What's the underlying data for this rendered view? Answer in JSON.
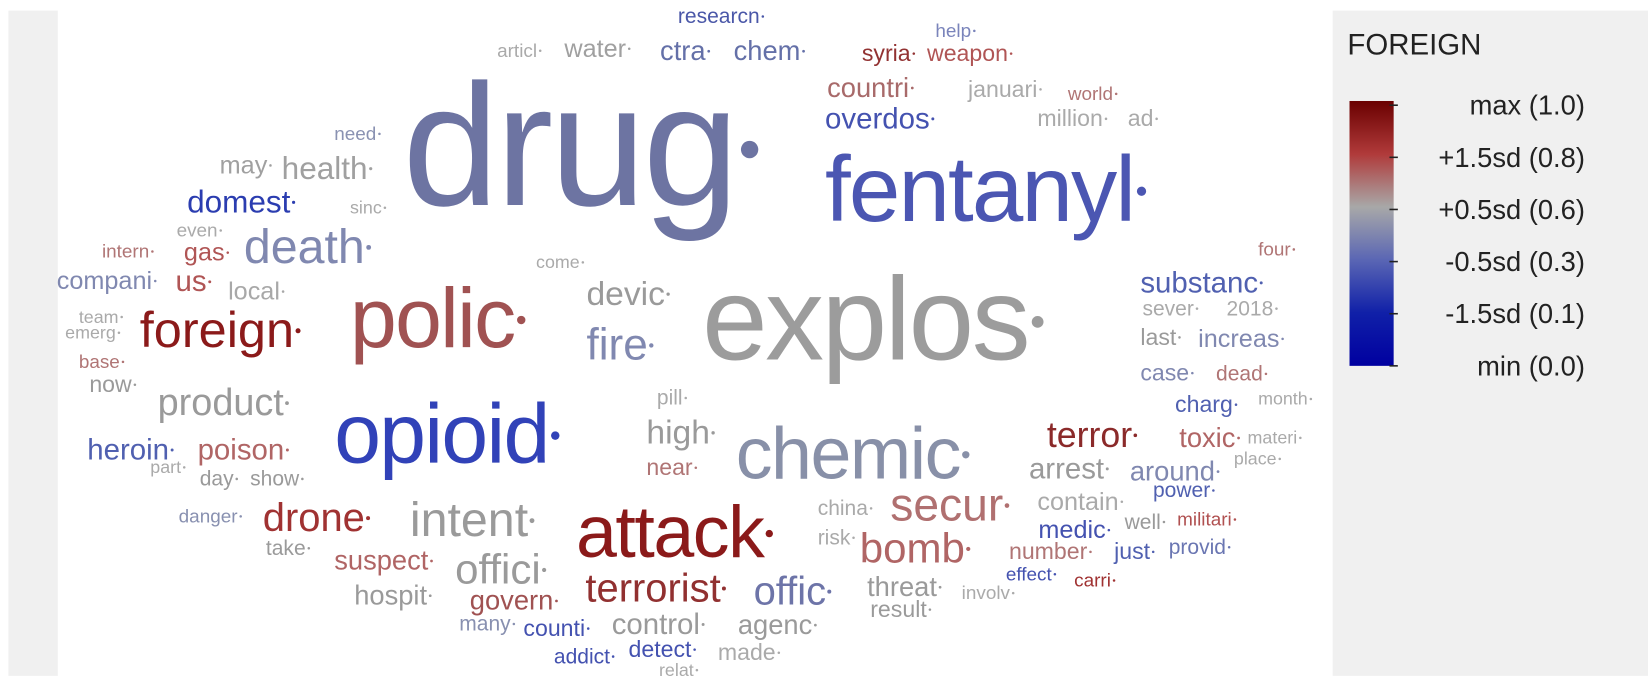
{
  "chart_data": {
    "type": "wordcloud",
    "words": [
      {
        "text": "researcn",
        "color": "#4a57a8"
      },
      {
        "text": "help",
        "color": "#7a84bb"
      },
      {
        "text": "articl",
        "color": "#aaaaaa"
      },
      {
        "text": "water",
        "color": "#a0a0a0"
      },
      {
        "text": "ctra",
        "color": "#6470a8"
      },
      {
        "text": "chem",
        "color": "#6470a8"
      },
      {
        "text": "syria",
        "color": "#923232"
      },
      {
        "text": "weapon",
        "color": "#b05555"
      },
      {
        "text": "countri",
        "color": "#a86a6a"
      },
      {
        "text": "januari",
        "color": "#aaaaaa"
      },
      {
        "text": "world",
        "color": "#b07575"
      },
      {
        "text": "overdos",
        "color": "#4452b0"
      },
      {
        "text": "million",
        "color": "#aaaaaa"
      },
      {
        "text": "ad",
        "color": "#aaaaaa"
      },
      {
        "text": "need",
        "color": "#8a92b2"
      },
      {
        "text": "drug",
        "color": "#6d74a2"
      },
      {
        "text": "fentanyl",
        "color": "#4b56b2"
      },
      {
        "text": "may",
        "color": "#a0a0a0"
      },
      {
        "text": "health",
        "color": "#a0a0a0"
      },
      {
        "text": "domest",
        "color": "#2b3db0"
      },
      {
        "text": "sinc",
        "color": "#aaaaaa"
      },
      {
        "text": "even",
        "color": "#aaaaaa"
      },
      {
        "text": "intern",
        "color": "#b07575"
      },
      {
        "text": "gas",
        "color": "#b05555"
      },
      {
        "text": "death",
        "color": "#8088b0"
      },
      {
        "text": "come",
        "color": "#aaaaaa"
      },
      {
        "text": "four",
        "color": "#b07575"
      },
      {
        "text": "compani",
        "color": "#8088b0"
      },
      {
        "text": "us",
        "color": "#b05555"
      },
      {
        "text": "local",
        "color": "#a8a8a8"
      },
      {
        "text": "polic",
        "color": "#a05252"
      },
      {
        "text": "devic",
        "color": "#9a9a9a"
      },
      {
        "text": "explos",
        "color": "#9c9c9c"
      },
      {
        "text": "substanc",
        "color": "#5060b0"
      },
      {
        "text": "team",
        "color": "#aaaaaa"
      },
      {
        "text": "foreign",
        "color": "#8b1a1a"
      },
      {
        "text": "sever",
        "color": "#aaaaaa"
      },
      {
        "text": "2018",
        "color": "#aaaaaa"
      },
      {
        "text": "emerg",
        "color": "#aaaaaa"
      },
      {
        "text": "fire",
        "color": "#8088b0"
      },
      {
        "text": "last",
        "color": "#9a9a9a"
      },
      {
        "text": "increas",
        "color": "#8088b0"
      },
      {
        "text": "base",
        "color": "#b07575"
      },
      {
        "text": "case",
        "color": "#8088b0"
      },
      {
        "text": "dead",
        "color": "#b07575"
      },
      {
        "text": "now",
        "color": "#9a9a9a"
      },
      {
        "text": "product",
        "color": "#9a9a9a"
      },
      {
        "text": "pill",
        "color": "#aaaaaa"
      },
      {
        "text": "charg",
        "color": "#5060b0"
      },
      {
        "text": "month",
        "color": "#aaaaaa"
      },
      {
        "text": "opioid",
        "color": "#3142b8"
      },
      {
        "text": "high",
        "color": "#9a9a9a"
      },
      {
        "text": "terror",
        "color": "#8b2a2a"
      },
      {
        "text": "toxic",
        "color": "#b06565"
      },
      {
        "text": "materi",
        "color": "#aaaaaa"
      },
      {
        "text": "chemic",
        "color": "#8890a8"
      },
      {
        "text": "heroin",
        "color": "#5060b0"
      },
      {
        "text": "poison",
        "color": "#b06565"
      },
      {
        "text": "part",
        "color": "#aaaaaa"
      },
      {
        "text": "near",
        "color": "#b07575"
      },
      {
        "text": "arrest",
        "color": "#9a9a9a"
      },
      {
        "text": "around",
        "color": "#8088b0"
      },
      {
        "text": "place",
        "color": "#aaaaaa"
      },
      {
        "text": "day",
        "color": "#9a9a9a"
      },
      {
        "text": "show",
        "color": "#9a9a9a"
      },
      {
        "text": "china",
        "color": "#aaaaaa"
      },
      {
        "text": "contain",
        "color": "#aaaaaa"
      },
      {
        "text": "power",
        "color": "#5060b0"
      },
      {
        "text": "secur",
        "color": "#b07070"
      },
      {
        "text": "danger",
        "color": "#8890b0"
      },
      {
        "text": "drone",
        "color": "#a03232"
      },
      {
        "text": "intent",
        "color": "#9a9a9a"
      },
      {
        "text": "attack",
        "color": "#8b1a1a"
      },
      {
        "text": "medic",
        "color": "#4452b0"
      },
      {
        "text": "well",
        "color": "#9a9a9a"
      },
      {
        "text": "militari",
        "color": "#b05050"
      },
      {
        "text": "take",
        "color": "#9a9a9a"
      },
      {
        "text": "risk",
        "color": "#aaaaaa"
      },
      {
        "text": "bomb",
        "color": "#b06565"
      },
      {
        "text": "number",
        "color": "#b07575"
      },
      {
        "text": "just",
        "color": "#5060b0"
      },
      {
        "text": "provid",
        "color": "#6a76b2"
      },
      {
        "text": "suspect",
        "color": "#b06565"
      },
      {
        "text": "offici",
        "color": "#9a9a9a"
      },
      {
        "text": "effect",
        "color": "#4452b0"
      },
      {
        "text": "carri",
        "color": "#a03232"
      },
      {
        "text": "terrorist",
        "color": "#913030"
      },
      {
        "text": "offic",
        "color": "#6d74a8"
      },
      {
        "text": "threat",
        "color": "#9a9a9a"
      },
      {
        "text": "involv",
        "color": "#aaaaaa"
      },
      {
        "text": "hospit",
        "color": "#9a9a9a"
      },
      {
        "text": "govern",
        "color": "#a05252"
      },
      {
        "text": "result",
        "color": "#9a9a9a"
      },
      {
        "text": "many",
        "color": "#8890b0"
      },
      {
        "text": "counti",
        "color": "#4452b0"
      },
      {
        "text": "control",
        "color": "#9a9a9a"
      },
      {
        "text": "agenc",
        "color": "#9a9a9a"
      },
      {
        "text": "detect",
        "color": "#4452b0"
      },
      {
        "text": "made",
        "color": "#aaaaaa"
      },
      {
        "text": "addict",
        "color": "#4452b0"
      },
      {
        "text": "relat",
        "color": "#aaaaaa"
      }
    ],
    "legend": {
      "title": "FOREIGN",
      "labels": [
        "max (1.0)",
        "+1.5sd (0.8)",
        "+0.5sd (0.6)",
        "-0.5sd (0.3)",
        "-1.5sd (0.1)",
        "min (0.0)"
      ],
      "colors": [
        "#6a0000",
        "#b03a3a",
        "#a8a8a8",
        "#5a66b4",
        "#1020a8",
        "#0000a0"
      ]
    }
  }
}
